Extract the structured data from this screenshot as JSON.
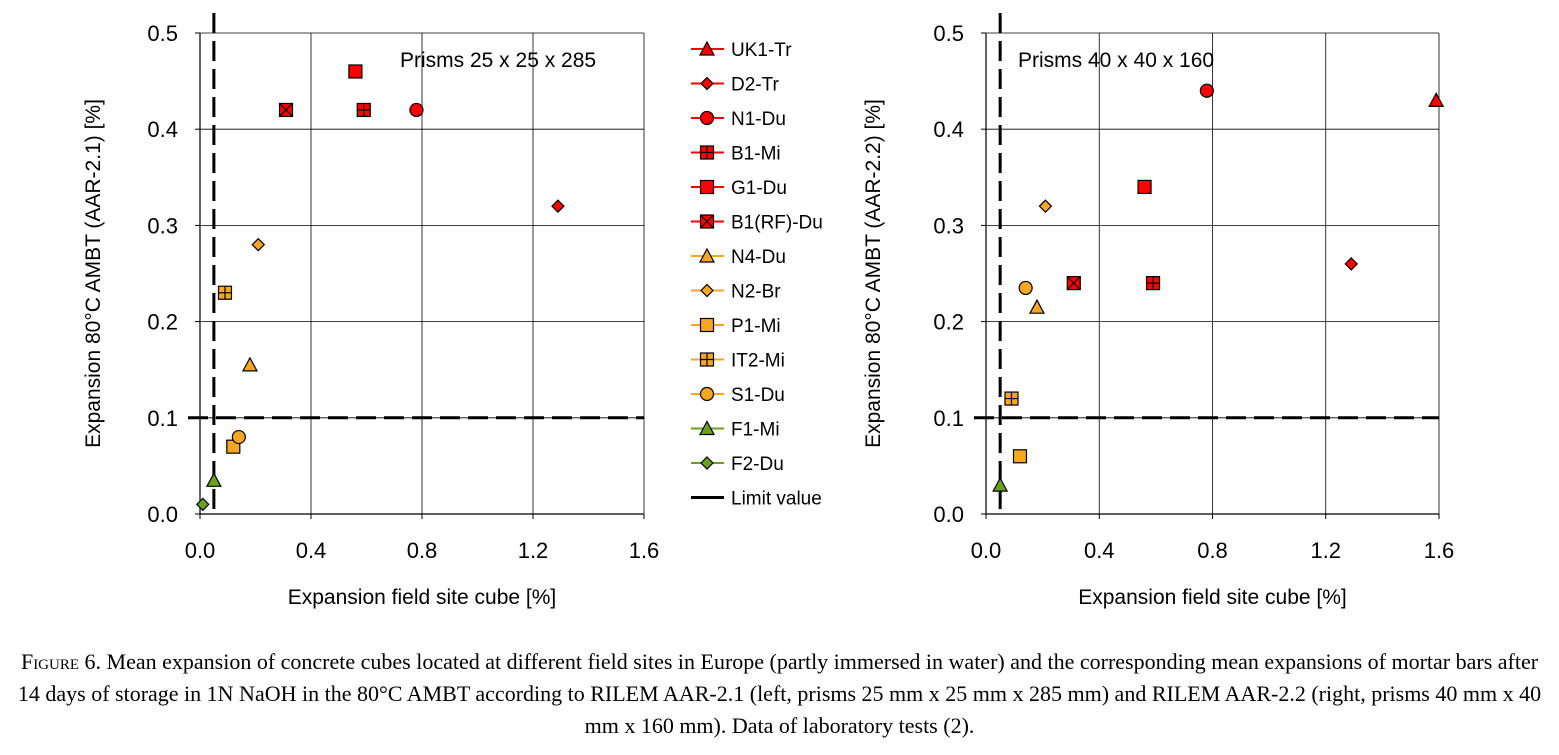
{
  "chart_data": [
    {
      "type": "scatter",
      "panel": "left",
      "annotation": "Prisms 25 x 25 x 285",
      "xlabel": "Expansion field site cube [%]",
      "ylabel": "Expansion 80°C AMBT (AAR-2.1) [%]",
      "xlim": [
        0.0,
        1.6
      ],
      "ylim": [
        0.0,
        0.5
      ],
      "xticks": [
        "0.0",
        "0.4",
        "0.8",
        "1.2",
        "1.6"
      ],
      "yticks": [
        "0.0",
        "0.1",
        "0.2",
        "0.3",
        "0.4",
        "0.5"
      ],
      "grid": true,
      "limit_value": {
        "x": 0.05,
        "y": 0.1
      },
      "series": [
        {
          "name": "D2-Tr",
          "x": 1.29,
          "y": 0.32
        },
        {
          "name": "N1-Du",
          "x": 0.78,
          "y": 0.42
        },
        {
          "name": "B1-Mi",
          "x": 0.59,
          "y": 0.42
        },
        {
          "name": "G1-Du",
          "x": 0.56,
          "y": 0.46
        },
        {
          "name": "B1(RF)-Du",
          "x": 0.31,
          "y": 0.42
        },
        {
          "name": "N4-Du",
          "x": 0.18,
          "y": 0.155
        },
        {
          "name": "N2-Br",
          "x": 0.21,
          "y": 0.28
        },
        {
          "name": "P1-Mi",
          "x": 0.12,
          "y": 0.07
        },
        {
          "name": "IT2-Mi",
          "x": 0.09,
          "y": 0.23
        },
        {
          "name": "S1-Du",
          "x": 0.14,
          "y": 0.08
        },
        {
          "name": "F1-Mi",
          "x": 0.05,
          "y": 0.035
        },
        {
          "name": "F2-Du",
          "x": 0.01,
          "y": 0.01
        }
      ]
    },
    {
      "type": "scatter",
      "panel": "right",
      "annotation": "Prisms 40 x 40 x 160",
      "xlabel": "Expansion field site cube [%]",
      "ylabel": "Expansion 80°C AMBT (AAR-2.2) [%]",
      "xlim": [
        0.0,
        1.6
      ],
      "ylim": [
        0.0,
        0.5
      ],
      "xticks": [
        "0.0",
        "0.4",
        "0.8",
        "1.2",
        "1.6"
      ],
      "yticks": [
        "0.0",
        "0.1",
        "0.2",
        "0.3",
        "0.4",
        "0.5"
      ],
      "grid": true,
      "limit_value": {
        "x": 0.05,
        "y": 0.1
      },
      "series": [
        {
          "name": "UK1-Tr",
          "x": 1.59,
          "y": 0.43
        },
        {
          "name": "D2-Tr",
          "x": 1.29,
          "y": 0.26
        },
        {
          "name": "N1-Du",
          "x": 0.78,
          "y": 0.44
        },
        {
          "name": "B1-Mi",
          "x": 0.59,
          "y": 0.24
        },
        {
          "name": "G1-Du",
          "x": 0.56,
          "y": 0.34
        },
        {
          "name": "B1(RF)-Du",
          "x": 0.31,
          "y": 0.24
        },
        {
          "name": "N4-Du",
          "x": 0.18,
          "y": 0.215
        },
        {
          "name": "N2-Br",
          "x": 0.21,
          "y": 0.32
        },
        {
          "name": "P1-Mi",
          "x": 0.12,
          "y": 0.06
        },
        {
          "name": "IT2-Mi",
          "x": 0.09,
          "y": 0.12
        },
        {
          "name": "S1-Du",
          "x": 0.14,
          "y": 0.235
        },
        {
          "name": "F1-Mi",
          "x": 0.05,
          "y": 0.03
        }
      ]
    }
  ],
  "legend": {
    "placement": "between panels",
    "entries": [
      {
        "name": "UK1-Tr",
        "marker": "triangle",
        "color": "#ff0000"
      },
      {
        "name": "D2-Tr",
        "marker": "diamond",
        "color": "#ff0000"
      },
      {
        "name": "N1-Du",
        "marker": "circle",
        "color": "#ff0000"
      },
      {
        "name": "B1-Mi",
        "marker": "square-plus",
        "color": "#ff0000"
      },
      {
        "name": "G1-Du",
        "marker": "square",
        "color": "#ff0000"
      },
      {
        "name": "B1(RF)-Du",
        "marker": "square-x",
        "color": "#ff0000"
      },
      {
        "name": "N4-Du",
        "marker": "triangle",
        "color": "#f5a623"
      },
      {
        "name": "N2-Br",
        "marker": "diamond",
        "color": "#f5a623"
      },
      {
        "name": "P1-Mi",
        "marker": "square",
        "color": "#f5a623"
      },
      {
        "name": "IT2-Mi",
        "marker": "square-plus",
        "color": "#f5a623"
      },
      {
        "name": "S1-Du",
        "marker": "circle",
        "color": "#f5a623"
      },
      {
        "name": "F1-Mi",
        "marker": "triangle",
        "color": "#6aa121"
      },
      {
        "name": "F2-Du",
        "marker": "diamond",
        "color": "#6aa121"
      },
      {
        "name": "Limit value",
        "marker": "dash-line",
        "color": "#000000"
      }
    ]
  },
  "caption": {
    "label": "Figure 6.",
    "text": " Mean expansion of concrete cubes located at different field sites in Europe (partly immersed in water) and the corresponding mean expansions of mortar bars after 14 days of storage in 1N NaOH in the 80°C AMBT according to RILEM AAR-2.1 (left, prisms 25 mm x 25 mm x 285 mm) and RILEM AAR-2.2 (right, prisms 40 mm x 40 mm x 160 mm). Data of laboratory tests (2)."
  }
}
